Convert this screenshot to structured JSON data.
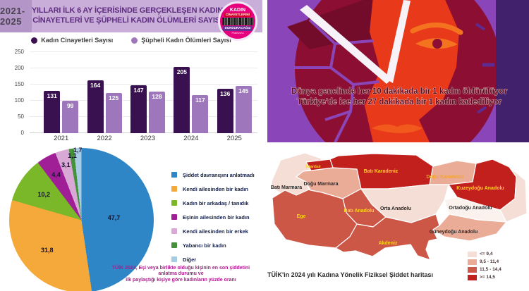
{
  "header": {
    "year_range": "2021-2025",
    "title_line1": "YILLARI İLK 6 AY İÇERİSİNDE GERÇEKLEŞEN KADIN",
    "title_line2": "CİNAYETLERİ VE ŞÜPHELİ KADIN ÖLÜMLERİ SAYISI",
    "badge": {
      "line1": "KADIN",
      "line2": "CİNAYETLERİNİ",
      "line3": "DURDURACAĞIZ",
      "line4": "Platformu",
      "bg_color": "#e6007e"
    }
  },
  "chart_data": [
    {
      "type": "bar",
      "categories": [
        "2021",
        "2022",
        "2023",
        "2024",
        "2025"
      ],
      "series": [
        {
          "name": "Kadın Cinayetleri Sayısı",
          "color": "#3a1150",
          "values": [
            131,
            164,
            147,
            205,
            136
          ]
        },
        {
          "name": "Şüpheli Kadın Ölümleri Sayısı",
          "color": "#9d76bb",
          "values": [
            99,
            125,
            128,
            117,
            145
          ]
        }
      ],
      "ylim": [
        0,
        250
      ],
      "yticks": [
        0,
        50,
        100,
        150,
        200,
        250
      ],
      "grid": true,
      "legend_position": "top"
    },
    {
      "type": "pie",
      "slices": [
        {
          "label": "Şiddet davranışını anlatmadı",
          "value": 47.7,
          "display": "47,7",
          "color": "#2e86c6"
        },
        {
          "label": "Kendi ailesinden bir kadın",
          "value": 31.8,
          "display": "31,8",
          "color": "#f5a93b"
        },
        {
          "label": "Kadın bir arkadaş / tanıdık",
          "value": 10.2,
          "display": "10,2",
          "color": "#7ab829"
        },
        {
          "label": "Eşinin ailesinden bir kadın",
          "value": 4.4,
          "display": "4,4",
          "color": "#a01f96"
        },
        {
          "label": "Kendi ailesinden bir erkek",
          "value": 3.1,
          "display": "3,1",
          "color": "#d9a9d5"
        },
        {
          "label": "Yabancı bir kadın",
          "value": 1.1,
          "display": "1,1",
          "color": "#44913a"
        },
        {
          "label": "Diğer",
          "value": 1.7,
          "display": "1,7",
          "color": "#a8cbe6"
        }
      ],
      "caption_lines": [
        "TÜİK 2024, Eşi veya birlikte olduğu kişinin en son şiddetini",
        "anlatma durumu ve",
        "ilk paylaştığı kişiye göre  kadınların yüzde oranı"
      ],
      "legend_position": "right"
    }
  ],
  "illustration": {
    "caption_line1": "Dünya genelinde her 10 dakikada bir 1 kadın öldürülüyor",
    "caption_line2": "Türkiye'de ise her 27 dakikada bir 1 kadın katlediliyor",
    "bg_color": "#8a46b8",
    "clock_color": "#8c0f33",
    "face_color": "#e83a1b"
  },
  "map": {
    "regions": [
      {
        "name": "İstanbul",
        "color": "#c1201d",
        "label_color": "#ffd21f"
      },
      {
        "name": "Batı Marmara",
        "color": "#f4ded5",
        "label_color": "#2b2b2b"
      },
      {
        "name": "Doğu Marmara",
        "color": "#eaab97",
        "label_color": "#2b2b2b"
      },
      {
        "name": "Batı Karadeniz",
        "color": "#c1201d",
        "label_color": "#ffd21f"
      },
      {
        "name": "Doğu Karadeniz",
        "color": "#eaab97",
        "label_color": "#f2a72e"
      },
      {
        "name": "Kuzeydoğu Anadolu",
        "color": "#c1201d",
        "label_color": "#ffd21f"
      },
      {
        "name": "Orta Anadolu",
        "color": "#f4ded5",
        "label_color": "#2b2b2b"
      },
      {
        "name": "Ortadoğu Anadolu",
        "color": "#fbf2ed",
        "label_color": "#2b2b2b"
      },
      {
        "name": "Batı Anadolu",
        "color": "#cd5747",
        "label_color": "#ffd21f"
      },
      {
        "name": "Ege",
        "color": "#cd5747",
        "label_color": "#ffd21f"
      },
      {
        "name": "Akdeniz",
        "color": "#cd5747",
        "label_color": "#ffd21f"
      },
      {
        "name": "Güneydoğu Anadolu",
        "color": "#eaab97",
        "label_color": "#2b2b2b"
      },
      {
        "name": "",
        "color": "#f4ded5",
        "label_color": "#2b2b2b"
      }
    ],
    "legend": [
      {
        "label": "<= 9,4",
        "color": "#f4ded5"
      },
      {
        "label": "9,5 - 11,4",
        "color": "#eaab97"
      },
      {
        "label": "11,5 - 14,4",
        "color": "#cd5747"
      },
      {
        "label": ">= 14,5",
        "color": "#c1201d"
      }
    ],
    "caption": "TÜİK'in 2024 yılı Kadına Yönelik Fiziksel Şiddet haritası"
  }
}
